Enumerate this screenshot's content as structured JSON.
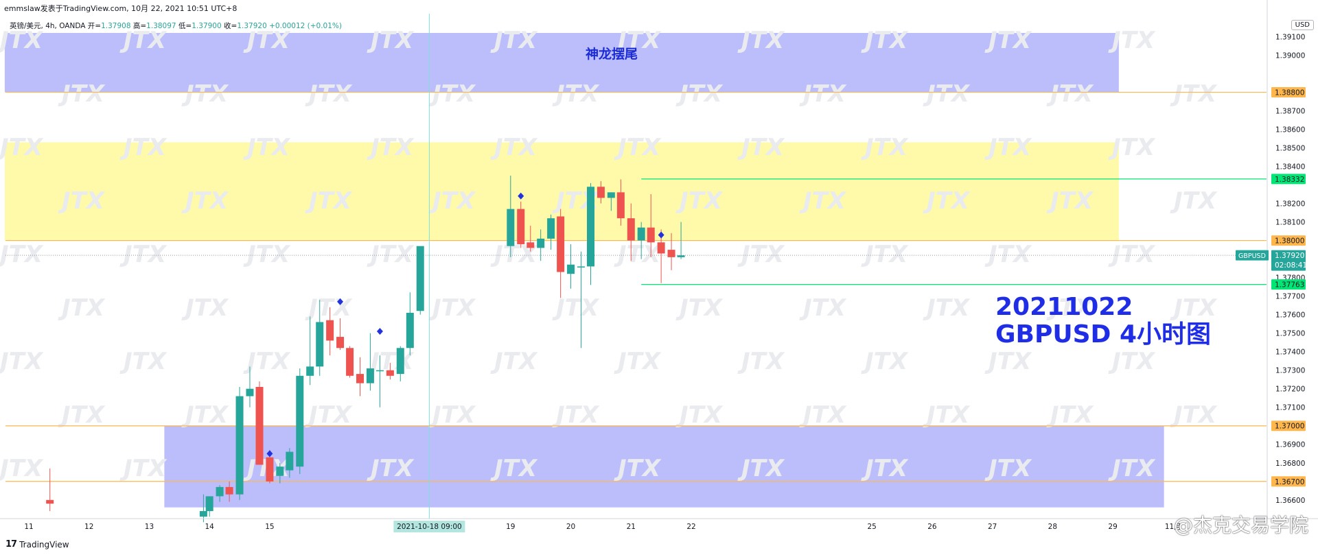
{
  "header": {
    "publisher": "emmslaw发表于TradingView.com,",
    "datetime": "10月 22, 2021 10:51 UTC+8"
  },
  "legend": {
    "symbol": "英镑/美元, 4h, OANDA",
    "open_label": "开=",
    "open": "1.37908",
    "high_label": "高=",
    "high": "1.38097",
    "low_label": "低=",
    "low": "1.37900",
    "close_label": "收=",
    "close": "1.37920",
    "change": "+0.00012 (+0.01%)"
  },
  "currency_badge": "USD",
  "zone_label": "神龙摆尾",
  "annotation": {
    "line1": "20211022",
    "line2": "GBPUSD 4小时图"
  },
  "footer": {
    "brand": "TradingView"
  },
  "credit": "@杰克交易学院",
  "colors": {
    "up": "#26a69a",
    "down": "#ef5350",
    "orange_line": "#ffb74d",
    "green_line": "#00e676",
    "blue_zone": "#bcbefc",
    "yellow_zone": "#fffaaa",
    "accent_text": "#1f2ee6"
  },
  "chart_data": {
    "type": "candlestick",
    "symbol": "GBPUSD",
    "timeframe": "4h",
    "ylim": [
      1.3654,
      1.3912
    ],
    "y_ticks": [
      1.391,
      1.39,
      1.387,
      1.386,
      1.385,
      1.384,
      1.382,
      1.381,
      1.378,
      1.377,
      1.376,
      1.375,
      1.374,
      1.373,
      1.372,
      1.371,
      1.369,
      1.368,
      1.366
    ],
    "y_tick_labels": [
      "1.39100",
      "1.39000",
      "1.38700",
      "1.38600",
      "1.38500",
      "1.38400",
      "1.38200",
      "1.38100",
      "1.37800",
      "1.37700",
      "1.37600",
      "1.37500",
      "1.37400",
      "1.37300",
      "1.37200",
      "1.37100",
      "1.36900",
      "1.36800",
      "1.36600"
    ],
    "x_labels": [
      {
        "label": "11",
        "day": 11
      },
      {
        "label": "12",
        "day": 12
      },
      {
        "label": "13",
        "day": 13
      },
      {
        "label": "14",
        "day": 14
      },
      {
        "label": "15",
        "day": 15
      },
      {
        "label": "19",
        "day": 19
      },
      {
        "label": "20",
        "day": 20
      },
      {
        "label": "21",
        "day": 21
      },
      {
        "label": "22",
        "day": 22
      },
      {
        "label": "25",
        "day": 25
      },
      {
        "label": "26",
        "day": 26
      },
      {
        "label": "27",
        "day": 27
      },
      {
        "label": "28",
        "day": 28
      },
      {
        "label": "29",
        "day": 29
      },
      {
        "label": "11月",
        "day": 30
      }
    ],
    "crosshair": {
      "x_label": "2021-10-18  09:00",
      "day": 17.65
    },
    "price_tags": [
      {
        "price": 1.388,
        "label": "1.38800",
        "kind": "orange"
      },
      {
        "price": 1.38332,
        "label": "1.38332",
        "kind": "green"
      },
      {
        "price": 1.38,
        "label": "1.38000",
        "kind": "orange"
      },
      {
        "price": 1.3792,
        "label": "1.37920",
        "sublabel": "02:08:41",
        "kind": "current",
        "symbol": "GBPUSD"
      },
      {
        "price": 1.37763,
        "label": "1.37763",
        "kind": "green"
      },
      {
        "price": 1.37,
        "label": "1.37000",
        "kind": "orange"
      },
      {
        "price": 1.367,
        "label": "1.36700",
        "kind": "orange"
      }
    ],
    "zones": [
      {
        "kind": "blue",
        "from_day": 10.6,
        "to_day": 29.1,
        "top": 1.3912,
        "bottom": 1.388
      },
      {
        "kind": "yellow",
        "from_day": 10.6,
        "to_day": 29.1,
        "top": 1.3853,
        "bottom": 1.38
      },
      {
        "kind": "blue",
        "from_day": 13.25,
        "to_day": 29.85,
        "top": 1.37,
        "bottom": 1.3656
      }
    ],
    "green_lines": [
      {
        "price": 1.38332,
        "from_day": 21.17
      },
      {
        "price": 1.37763,
        "from_day": 21.17
      }
    ],
    "candles": [
      {
        "day": 11.35,
        "o": 1.366,
        "h": 1.3677,
        "l": 1.3654,
        "c": 1.3658
      },
      {
        "day": 13.9,
        "o": 1.3651,
        "h": 1.3663,
        "l": 1.3648,
        "c": 1.3654
      },
      {
        "day": 14.0,
        "o": 1.3654,
        "h": 1.3662,
        "l": 1.3651,
        "c": 1.3662
      },
      {
        "day": 14.17,
        "o": 1.3662,
        "h": 1.3668,
        "l": 1.3659,
        "c": 1.3667
      },
      {
        "day": 14.33,
        "o": 1.3667,
        "h": 1.367,
        "l": 1.3659,
        "c": 1.3663
      },
      {
        "day": 14.5,
        "o": 1.3663,
        "h": 1.3721,
        "l": 1.366,
        "c": 1.3716
      },
      {
        "day": 14.67,
        "o": 1.3716,
        "h": 1.3732,
        "l": 1.371,
        "c": 1.372
      },
      {
        "day": 14.83,
        "o": 1.3721,
        "h": 1.3724,
        "l": 1.3679,
        "c": 1.3679
      },
      {
        "day": 15.0,
        "o": 1.3683,
        "h": 1.3687,
        "l": 1.3669,
        "c": 1.367
      },
      {
        "day": 15.17,
        "o": 1.3673,
        "h": 1.368,
        "l": 1.3669,
        "c": 1.3678
      },
      {
        "day": 15.33,
        "o": 1.3676,
        "h": 1.3688,
        "l": 1.3672,
        "c": 1.3686
      },
      {
        "day": 15.5,
        "o": 1.3678,
        "h": 1.3731,
        "l": 1.3674,
        "c": 1.3727
      },
      {
        "day": 15.67,
        "o": 1.3727,
        "h": 1.3759,
        "l": 1.3722,
        "c": 1.3732
      },
      {
        "day": 15.83,
        "o": 1.3732,
        "h": 1.3768,
        "l": 1.3727,
        "c": 1.3756
      },
      {
        "day": 16.0,
        "o": 1.3757,
        "h": 1.3764,
        "l": 1.3738,
        "c": 1.3746
      },
      {
        "day": 16.17,
        "o": 1.3748,
        "h": 1.3758,
        "l": 1.3741,
        "c": 1.3742
      },
      {
        "day": 16.33,
        "o": 1.3742,
        "h": 1.3743,
        "l": 1.3726,
        "c": 1.3727
      },
      {
        "day": 16.5,
        "o": 1.3728,
        "h": 1.3737,
        "l": 1.3716,
        "c": 1.3723
      },
      {
        "day": 16.67,
        "o": 1.3723,
        "h": 1.375,
        "l": 1.3719,
        "c": 1.3731
      },
      {
        "day": 16.83,
        "o": 1.373,
        "h": 1.3738,
        "l": 1.371,
        "c": 1.373
      },
      {
        "day": 17.0,
        "o": 1.373,
        "h": 1.3734,
        "l": 1.3725,
        "c": 1.3727
      },
      {
        "day": 17.17,
        "o": 1.3728,
        "h": 1.3743,
        "l": 1.3724,
        "c": 1.3742
      },
      {
        "day": 17.33,
        "o": 1.3742,
        "h": 1.3772,
        "l": 1.3738,
        "c": 1.3761
      },
      {
        "day": 17.5,
        "o": 1.3762,
        "h": 1.3796,
        "l": 1.376,
        "c": 1.3797
      },
      {
        "day": 19.0,
        "o": 1.3797,
        "h": 1.3835,
        "l": 1.3791,
        "c": 1.3817
      },
      {
        "day": 19.17,
        "o": 1.3817,
        "h": 1.3821,
        "l": 1.3796,
        "c": 1.3798
      },
      {
        "day": 19.33,
        "o": 1.3799,
        "h": 1.3808,
        "l": 1.3794,
        "c": 1.3796
      },
      {
        "day": 19.5,
        "o": 1.3796,
        "h": 1.3806,
        "l": 1.3789,
        "c": 1.3801
      },
      {
        "day": 19.67,
        "o": 1.3801,
        "h": 1.3814,
        "l": 1.3795,
        "c": 1.3812
      },
      {
        "day": 19.83,
        "o": 1.3813,
        "h": 1.3817,
        "l": 1.3769,
        "c": 1.3783
      },
      {
        "day": 20.0,
        "o": 1.3782,
        "h": 1.3798,
        "l": 1.3774,
        "c": 1.3787
      },
      {
        "day": 20.17,
        "o": 1.3786,
        "h": 1.3794,
        "l": 1.3742,
        "c": 1.3786
      },
      {
        "day": 20.33,
        "o": 1.3786,
        "h": 1.3831,
        "l": 1.3776,
        "c": 1.3829
      },
      {
        "day": 20.5,
        "o": 1.3829,
        "h": 1.3832,
        "l": 1.382,
        "c": 1.3823
      },
      {
        "day": 20.67,
        "o": 1.3823,
        "h": 1.3826,
        "l": 1.3816,
        "c": 1.3826
      },
      {
        "day": 20.83,
        "o": 1.3826,
        "h": 1.3833,
        "l": 1.3808,
        "c": 1.3812
      },
      {
        "day": 21.0,
        "o": 1.3812,
        "h": 1.382,
        "l": 1.3789,
        "c": 1.38
      },
      {
        "day": 21.17,
        "o": 1.38,
        "h": 1.381,
        "l": 1.379,
        "c": 1.3807
      },
      {
        "day": 21.33,
        "o": 1.3807,
        "h": 1.3825,
        "l": 1.3791,
        "c": 1.3799
      },
      {
        "day": 21.5,
        "o": 1.3799,
        "h": 1.3806,
        "l": 1.3777,
        "c": 1.3793
      },
      {
        "day": 21.67,
        "o": 1.3795,
        "h": 1.3804,
        "l": 1.3784,
        "c": 1.3791
      },
      {
        "day": 21.83,
        "o": 1.3791,
        "h": 1.381,
        "l": 1.379,
        "c": 1.3792
      }
    ],
    "markers": [
      {
        "day": 15.0,
        "price": 1.3685
      },
      {
        "day": 16.17,
        "price": 1.3767
      },
      {
        "day": 16.83,
        "price": 1.3751
      },
      {
        "day": 19.17,
        "price": 1.3824
      },
      {
        "day": 21.5,
        "price": 1.3803
      }
    ]
  }
}
